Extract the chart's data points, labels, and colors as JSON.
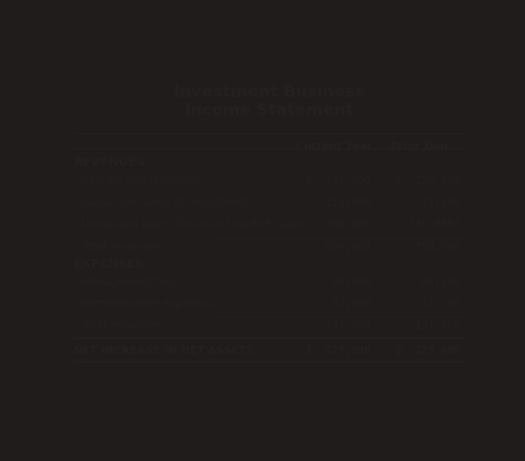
{
  "background_color": "#201c1c",
  "fig_width": 5.8,
  "fig_height": 5.1,
  "dpi": 100
}
